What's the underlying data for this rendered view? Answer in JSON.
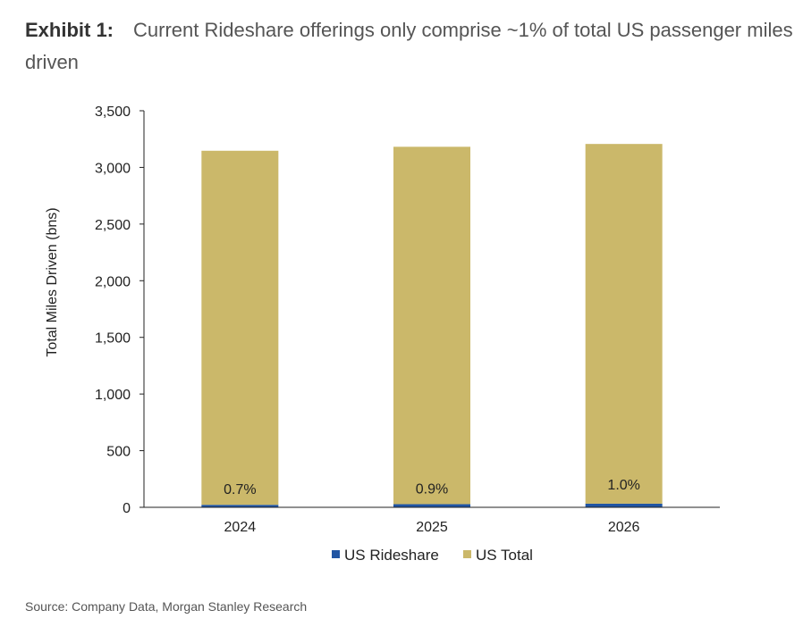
{
  "exhibit": {
    "label": "Exhibit 1:",
    "title": "Current Rideshare offerings only comprise ~1% of total US passenger miles driven"
  },
  "source": "Source: Company Data, Morgan Stanley Research",
  "colors": {
    "rideshare": "#2155a3",
    "total": "#cbb86a",
    "axis": "#222222"
  },
  "chart_data": {
    "type": "bar",
    "stacked": true,
    "categories": [
      "2024",
      "2025",
      "2026"
    ],
    "series": [
      {
        "name": "US Rideshare",
        "values": [
          22,
          28,
          32
        ]
      },
      {
        "name": "US Total",
        "values": [
          3125,
          3154,
          3175
        ]
      }
    ],
    "data_labels": [
      "0.7%",
      "0.9%",
      "1.0%"
    ],
    "ylabel": "Total Miles Driven (bns)",
    "xlabel": "",
    "ylim": [
      0,
      3500
    ],
    "yticks": [
      0,
      500,
      1000,
      1500,
      2000,
      2500,
      3000,
      3500
    ],
    "ytick_labels": [
      "0",
      "500",
      "1,000",
      "1,500",
      "2,000",
      "2,500",
      "3,000",
      "3,500"
    ],
    "legend": [
      "US Rideshare",
      "US Total"
    ],
    "legend_position": "bottom",
    "grid": false
  }
}
